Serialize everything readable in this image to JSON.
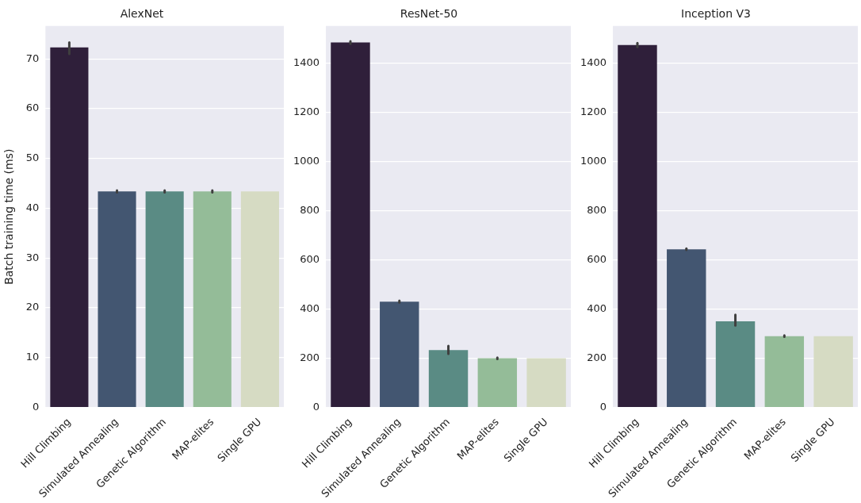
{
  "chart_data": [
    {
      "type": "bar",
      "title": "AlexNet",
      "ylabel": "Batch training time (ms)",
      "categories": [
        "Hill Climbing",
        "Simulated Annealing",
        "Genetic Algorithm",
        "MAP-elites",
        "Single GPU"
      ],
      "values": [
        72.3,
        43.4,
        43.4,
        43.4,
        43.4
      ],
      "colors": [
        "#2f1f3a",
        "#435671",
        "#5a8b84",
        "#94bc98",
        "#d6dbc3"
      ],
      "errors": [
        [
          71.0,
          73.3
        ],
        [
          43.2,
          43.6
        ],
        [
          43.2,
          43.6
        ],
        [
          43.2,
          43.6
        ],
        null
      ],
      "ylim": [
        0,
        76.6
      ],
      "yticks": [
        0,
        10,
        20,
        30,
        40,
        50,
        60,
        70
      ],
      "grid": "y"
    },
    {
      "type": "bar",
      "title": "ResNet-50",
      "categories": [
        "Hill Climbing",
        "Simulated Annealing",
        "Genetic Algorithm",
        "MAP-elites",
        "Single GPU"
      ],
      "values": [
        1483,
        430,
        233,
        200,
        200
      ],
      "colors": [
        "#2f1f3a",
        "#435671",
        "#5a8b84",
        "#94bc98",
        "#d6dbc3"
      ],
      "errors": [
        [
          1478,
          1488
        ],
        [
          427,
          434
        ],
        [
          218,
          250
        ],
        [
          197,
          203
        ],
        null
      ],
      "ylim": [
        0,
        1550
      ],
      "yticks": [
        0,
        200,
        400,
        600,
        800,
        1000,
        1200,
        1400
      ],
      "grid": "y"
    },
    {
      "type": "bar",
      "title": "Inception V3",
      "categories": [
        "Hill Climbing",
        "Simulated Annealing",
        "Genetic Algorithm",
        "MAP-elites",
        "Single GPU"
      ],
      "values": [
        1473,
        643,
        350,
        290,
        290
      ],
      "colors": [
        "#2f1f3a",
        "#435671",
        "#5a8b84",
        "#94bc98",
        "#d6dbc3"
      ],
      "errors": [
        [
          1465,
          1481
        ],
        [
          640,
          646
        ],
        [
          333,
          377
        ],
        [
          287,
          293
        ],
        null
      ],
      "ylim": [
        0,
        1550
      ],
      "yticks": [
        0,
        200,
        400,
        600,
        800,
        1000,
        1200,
        1400
      ],
      "grid": "y"
    }
  ]
}
